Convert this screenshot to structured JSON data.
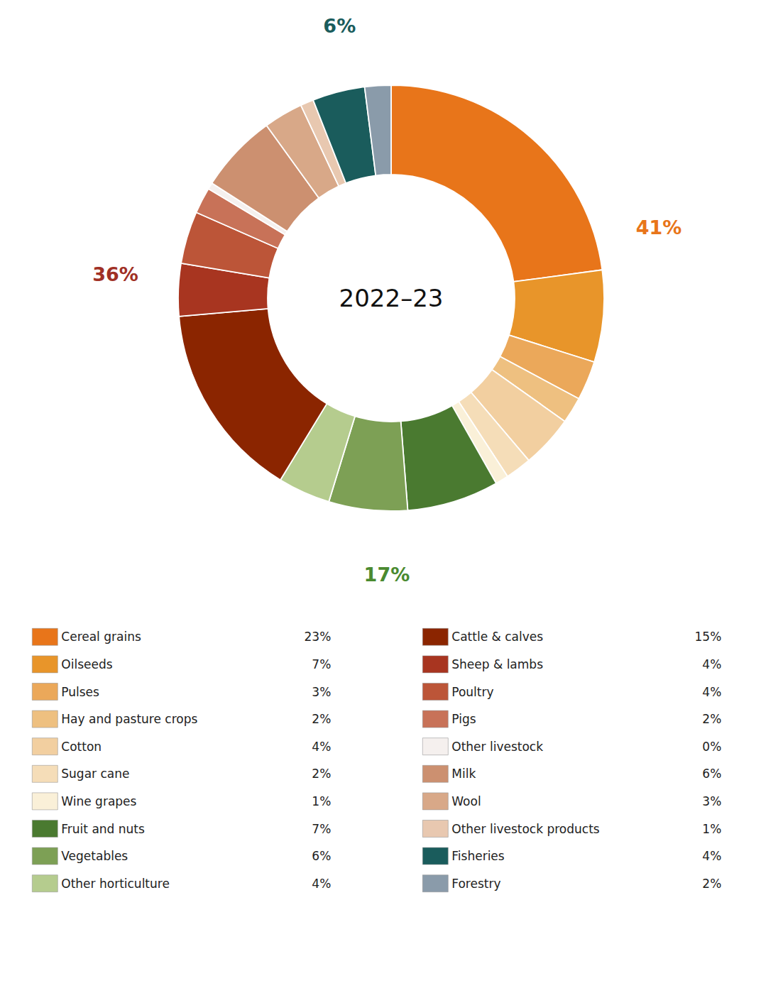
{
  "chart_data": {
    "type": "pie",
    "title": "2022–23",
    "categories": [
      "Cereal grains",
      "Oilseeds",
      "Pulses",
      "Hay and pasture crops",
      "Cotton",
      "Sugar cane",
      "Wine grapes",
      "Fruit and nuts",
      "Vegetables",
      "Other horticulture",
      "Cattle & calves",
      "Sheep & lambs",
      "Poultry",
      "Pigs",
      "Other livestock",
      "Milk",
      "Wool",
      "Other livestock products",
      "Fisheries",
      "Forestry"
    ],
    "values": [
      23,
      7,
      3,
      2,
      4,
      2,
      1,
      7,
      6,
      4,
      15,
      4,
      4,
      2,
      0.5,
      6,
      3,
      1,
      4,
      2
    ],
    "value_labels": [
      "23%",
      "7%",
      "3%",
      "2%",
      "4%",
      "2%",
      "1%",
      "7%",
      "6%",
      "4%",
      "15%",
      "4%",
      "4%",
      "2%",
      "0%",
      "6%",
      "3%",
      "1%",
      "4%",
      "2%"
    ],
    "colors": [
      "#E8751A",
      "#E8952A",
      "#EBA85A",
      "#EEC080",
      "#F2CFA0",
      "#F5DDB8",
      "#FAF0D8",
      "#4A7A30",
      "#7DA055",
      "#B5CC8E",
      "#8B2500",
      "#A83520",
      "#BC5538",
      "#C87258",
      "#F5F0EE",
      "#CC9070",
      "#D8A888",
      "#E8C8B0",
      "#1A5C5C",
      "#8A9BAA"
    ],
    "legend": "bottom",
    "annotations": [
      {
        "text": "41%",
        "value": 41,
        "color": "#E8751A",
        "segments": [
          "Cereal grains",
          "Oilseeds",
          "Pulses",
          "Hay and pasture crops",
          "Cotton",
          "Sugar cane",
          "Wine grapes"
        ]
      },
      {
        "text": "17%",
        "value": 17,
        "color": "#4A8A30",
        "segments": [
          "Fruit and nuts",
          "Vegetables",
          "Other horticulture"
        ]
      },
      {
        "text": "36%",
        "value": 36,
        "color": "#A03025",
        "segments": [
          "Cattle & calves",
          "Sheep & lambs",
          "Poultry",
          "Pigs",
          "Other livestock",
          "Milk",
          "Wool",
          "Other livestock products"
        ]
      },
      {
        "text": "6%",
        "value": 6,
        "color": "#1A5C5C",
        "segments": [
          "Fisheries",
          "Forestry"
        ]
      }
    ]
  }
}
